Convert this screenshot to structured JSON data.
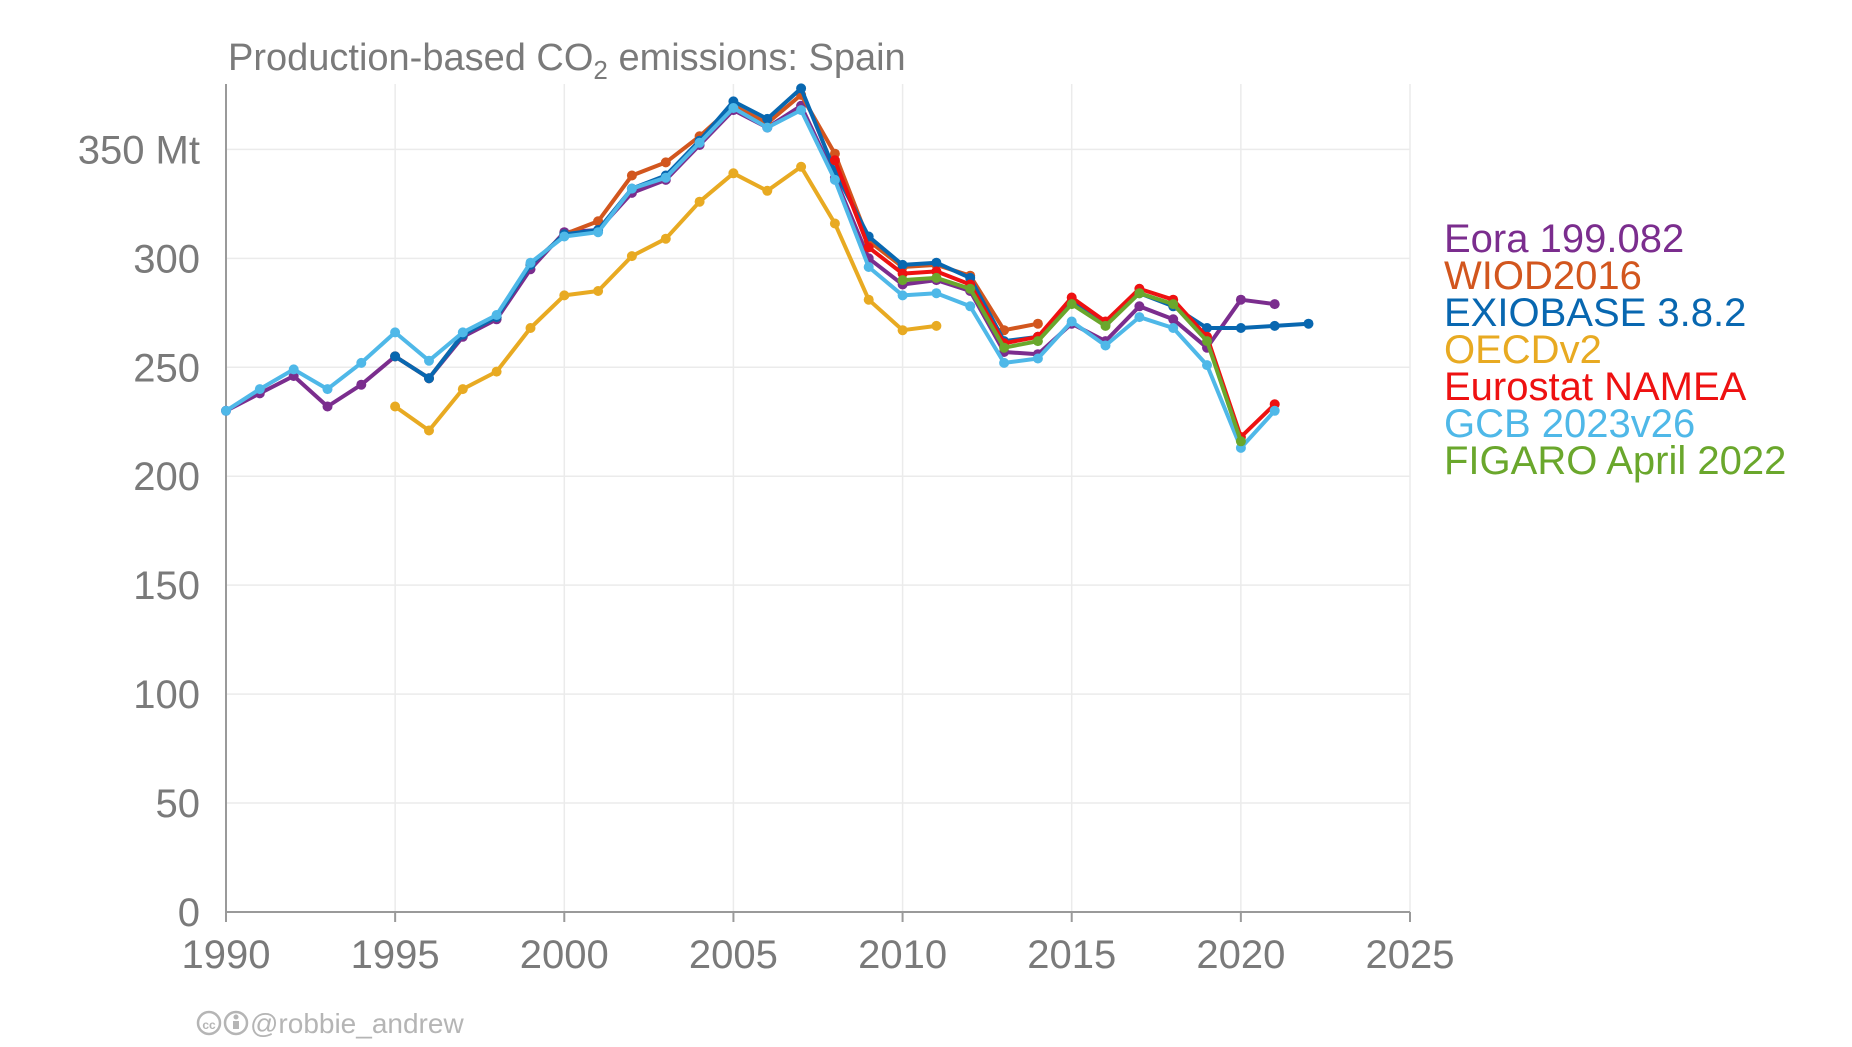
{
  "chart_data": {
    "type": "line",
    "title": {
      "prefix": "Production-based CO",
      "subscript": "2",
      "suffix": " emissions: Spain"
    },
    "xlim": [
      1990,
      2025
    ],
    "ylim": [
      0,
      380
    ],
    "x_ticks": [
      1990,
      1995,
      2000,
      2005,
      2010,
      2015,
      2020,
      2025
    ],
    "x_tick_labels": [
      "1990",
      "1995",
      "2000",
      "2005",
      "2010",
      "2015",
      "2020",
      "2025"
    ],
    "y_ticks": [
      0,
      50,
      100,
      150,
      200,
      250,
      300,
      350
    ],
    "y_tick_labels": [
      "0",
      "50",
      "100",
      "150",
      "200",
      "250",
      "300",
      "350 Mt"
    ],
    "grid": true,
    "legend_placement": "right",
    "series": [
      {
        "name": "Eora 199.082",
        "color": "#7B2D8E",
        "x": [
          1990,
          1991,
          1992,
          1993,
          1994,
          1995,
          1996,
          1997,
          1998,
          1999,
          2000,
          2001,
          2002,
          2003,
          2004,
          2005,
          2006,
          2007,
          2008,
          2009,
          2010,
          2011,
          2012,
          2013,
          2014,
          2015,
          2016,
          2017,
          2018,
          2019,
          2020,
          2021
        ],
        "values": [
          230,
          238,
          246,
          232,
          242,
          255,
          245,
          264,
          272,
          295,
          312,
          313,
          330,
          336,
          352,
          368,
          360,
          370,
          337,
          300,
          288,
          290,
          285,
          257,
          256,
          270,
          262,
          278,
          272,
          259,
          281,
          279
        ]
      },
      {
        "name": "WIOD2016",
        "color": "#D2561E",
        "x": [
          1995,
          1996,
          1997,
          1998,
          1999,
          2000,
          2001,
          2002,
          2003,
          2004,
          2005,
          2006,
          2007,
          2008,
          2009,
          2010,
          2011,
          2012,
          2013,
          2014
        ],
        "values": [
          255,
          245,
          265,
          273,
          297,
          311,
          317,
          338,
          344,
          356,
          370,
          362,
          375,
          348,
          308,
          296,
          297,
          292,
          267,
          270
        ]
      },
      {
        "name": "EXIOBASE 3.8.2",
        "color": "#0867B0",
        "x": [
          1995,
          1996,
          1997,
          1998,
          1999,
          2000,
          2001,
          2002,
          2003,
          2004,
          2005,
          2006,
          2007,
          2008,
          2009,
          2010,
          2011,
          2012,
          2013,
          2014,
          2015,
          2016,
          2017,
          2018,
          2019,
          2020,
          2021,
          2022
        ],
        "values": [
          255,
          245,
          265,
          273,
          297,
          311,
          313,
          332,
          338,
          354,
          372,
          364,
          378,
          340,
          310,
          297,
          298,
          291,
          262,
          264,
          280,
          270,
          284,
          278,
          268,
          268,
          269,
          270
        ]
      },
      {
        "name": "OECDv2",
        "color": "#E8AA22",
        "x": [
          1995,
          1996,
          1997,
          1998,
          1999,
          2000,
          2001,
          2002,
          2003,
          2004,
          2005,
          2006,
          2007,
          2008,
          2009,
          2010,
          2011
        ],
        "values": [
          232,
          221,
          240,
          248,
          268,
          283,
          285,
          301,
          309,
          326,
          339,
          331,
          342,
          316,
          281,
          267,
          269
        ]
      },
      {
        "name": "Eurostat NAMEA",
        "color": "#EE1111",
        "x": [
          2008,
          2009,
          2010,
          2011,
          2012,
          2013,
          2014,
          2015,
          2016,
          2017,
          2018,
          2019,
          2020,
          2021
        ],
        "values": [
          345,
          305,
          293,
          294,
          288,
          261,
          264,
          282,
          271,
          286,
          281,
          264,
          218,
          233
        ]
      },
      {
        "name": "GCB 2023v26",
        "color": "#4FB8E8",
        "x": [
          1990,
          1991,
          1992,
          1993,
          1994,
          1995,
          1996,
          1997,
          1998,
          1999,
          2000,
          2001,
          2002,
          2003,
          2004,
          2005,
          2006,
          2007,
          2008,
          2009,
          2010,
          2011,
          2012,
          2013,
          2014,
          2015,
          2016,
          2017,
          2018,
          2019,
          2020,
          2021
        ],
        "values": [
          230,
          240,
          249,
          240,
          252,
          266,
          253,
          266,
          274,
          298,
          310,
          312,
          332,
          337,
          353,
          369,
          360,
          368,
          336,
          296,
          283,
          284,
          278,
          252,
          254,
          271,
          260,
          273,
          268,
          251,
          213,
          230
        ]
      },
      {
        "name": "FIGARO April 2022",
        "color": "#6AA72C",
        "x": [
          2010,
          2011,
          2012,
          2013,
          2014,
          2015,
          2016,
          2017,
          2018,
          2019,
          2020
        ],
        "values": [
          290,
          291,
          286,
          259,
          262,
          279,
          269,
          284,
          279,
          262,
          216
        ]
      }
    ]
  },
  "credit": "@robbie_andrew"
}
